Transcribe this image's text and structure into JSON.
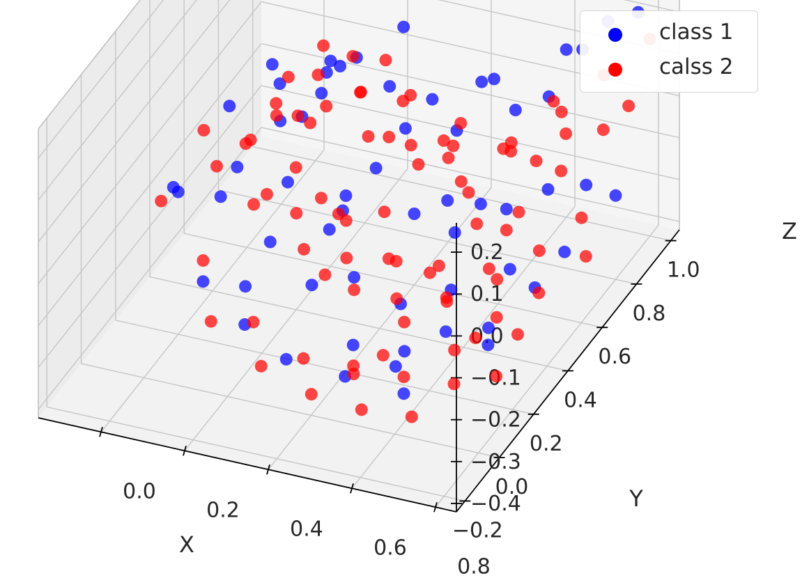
{
  "chart_data": {
    "type": "scatter",
    "projection": "3d",
    "xlabel": "X",
    "ylabel": "Y",
    "zlabel": "Z",
    "xticks": [
      "0.0",
      "0.2",
      "0.4",
      "0.6",
      "0.8"
    ],
    "yticks": [
      "−0.2",
      "0.0",
      "0.2",
      "0.4",
      "0.6",
      "0.8",
      "1.0"
    ],
    "zticks": [
      "−0.4",
      "−0.3",
      "−0.2",
      "−0.1",
      "0.0",
      "0.1",
      "0.2"
    ],
    "xlim": [
      -0.15,
      0.85
    ],
    "ylim": [
      -0.25,
      1.05
    ],
    "zlim": [
      -0.42,
      0.27
    ],
    "grid": true,
    "legend_position": "top-right",
    "series": [
      {
        "name": "class 1",
        "color": "#0000ff",
        "points": [
          [
            0.05,
            0.05,
            0.02
          ],
          [
            0.02,
            0.45,
            0.0
          ],
          [
            0.1,
            0.3,
            -0.05
          ],
          [
            0.08,
            0.6,
            -0.1
          ],
          [
            0.0,
            0.2,
            -0.08
          ],
          [
            0.12,
            0.5,
            0.05
          ],
          [
            0.18,
            0.4,
            -0.12
          ],
          [
            0.15,
            0.7,
            -0.02
          ],
          [
            0.22,
            0.2,
            -0.15
          ],
          [
            0.05,
            0.8,
            -0.2
          ],
          [
            0.25,
            0.55,
            -0.25
          ],
          [
            0.3,
            0.35,
            -0.18
          ],
          [
            0.28,
            0.75,
            -0.05
          ],
          [
            0.2,
            0.1,
            -0.3
          ],
          [
            0.35,
            0.5,
            -0.1
          ],
          [
            0.4,
            0.25,
            -0.22
          ],
          [
            0.38,
            0.65,
            -0.28
          ],
          [
            0.45,
            0.4,
            -0.35
          ],
          [
            0.42,
            0.8,
            -0.15
          ],
          [
            0.5,
            0.3,
            -0.4
          ],
          [
            0.48,
            0.6,
            -0.2
          ],
          [
            0.55,
            0.45,
            -0.32
          ],
          [
            0.52,
            0.2,
            -0.38
          ],
          [
            0.58,
            0.7,
            -0.25
          ],
          [
            0.6,
            0.35,
            -0.12
          ],
          [
            0.62,
            0.85,
            -0.05
          ],
          [
            0.65,
            0.55,
            -0.3
          ],
          [
            0.68,
            0.9,
            0.05
          ],
          [
            0.7,
            0.65,
            -0.15
          ],
          [
            0.72,
            0.95,
            0.1
          ],
          [
            0.75,
            0.75,
            -0.18
          ],
          [
            0.78,
            0.98,
            0.12
          ],
          [
            0.66,
            0.4,
            -0.36
          ],
          [
            0.56,
            0.15,
            -0.41
          ],
          [
            0.44,
            0.1,
            -0.37
          ],
          [
            0.32,
            0.05,
            -0.33
          ],
          [
            0.18,
            0.65,
            0.04
          ],
          [
            0.08,
            0.15,
            -0.25
          ],
          [
            0.26,
            0.88,
            0.02
          ],
          [
            0.46,
            0.92,
            -0.08
          ],
          [
            0.6,
            1.0,
            -0.02
          ],
          [
            0.73,
            0.5,
            -0.3
          ],
          [
            0.8,
            0.8,
            -0.22
          ],
          [
            0.14,
            0.25,
            -0.3
          ],
          [
            0.36,
            0.3,
            -0.06
          ],
          [
            0.5,
            0.75,
            0.01
          ],
          [
            0.04,
            0.35,
            -0.16
          ],
          [
            0.24,
            0.45,
            0.08
          ],
          [
            0.4,
            0.55,
            -0.02
          ],
          [
            0.64,
            0.2,
            -0.27
          ],
          [
            0.7,
            0.3,
            -0.34
          ],
          [
            0.1,
            0.9,
            -0.12
          ],
          [
            0.3,
            0.95,
            -0.18
          ],
          [
            0.54,
            0.85,
            -0.1
          ],
          [
            0.76,
            0.6,
            -0.26
          ],
          [
            0.02,
            0.7,
            -0.03
          ],
          [
            0.16,
            0.85,
            -0.06
          ],
          [
            0.34,
            0.15,
            -0.2
          ],
          [
            0.48,
            0.05,
            -0.26
          ],
          [
            0.58,
            0.55,
            -0.16
          ]
        ]
      },
      {
        "name": "calss 2",
        "color": "#ff0000",
        "points": [
          [
            0.0,
            0.1,
            -0.05
          ],
          [
            0.02,
            0.3,
            0.02
          ],
          [
            0.05,
            0.5,
            -0.1
          ],
          [
            0.03,
            0.7,
            -0.15
          ],
          [
            0.06,
            0.9,
            -0.08
          ],
          [
            0.08,
            0.15,
            -0.2
          ],
          [
            0.1,
            0.35,
            -0.02
          ],
          [
            0.12,
            0.55,
            0.04
          ],
          [
            0.09,
            0.75,
            -0.18
          ],
          [
            0.11,
            0.95,
            -0.12
          ],
          [
            0.14,
            0.05,
            -0.28
          ],
          [
            0.16,
            0.25,
            -0.1
          ],
          [
            0.18,
            0.45,
            -0.22
          ],
          [
            0.15,
            0.65,
            0.0
          ],
          [
            0.17,
            0.85,
            -0.14
          ],
          [
            0.2,
            0.15,
            -0.32
          ],
          [
            0.22,
            0.35,
            -0.05
          ],
          [
            0.24,
            0.55,
            -0.26
          ],
          [
            0.21,
            0.75,
            -0.08
          ],
          [
            0.23,
            0.95,
            -0.2
          ],
          [
            0.26,
            0.05,
            -0.36
          ],
          [
            0.28,
            0.25,
            -0.18
          ],
          [
            0.3,
            0.45,
            -0.3
          ],
          [
            0.27,
            0.65,
            -0.12
          ],
          [
            0.29,
            0.85,
            -0.24
          ],
          [
            0.32,
            0.15,
            -0.38
          ],
          [
            0.34,
            0.35,
            -0.15
          ],
          [
            0.36,
            0.55,
            -0.34
          ],
          [
            0.33,
            0.75,
            -0.06
          ],
          [
            0.35,
            0.95,
            -0.28
          ],
          [
            0.38,
            0.05,
            -0.4
          ],
          [
            0.4,
            0.25,
            -0.25
          ],
          [
            0.42,
            0.45,
            -0.37
          ],
          [
            0.39,
            0.65,
            -0.16
          ],
          [
            0.41,
            0.85,
            -0.3
          ],
          [
            0.44,
            0.15,
            -0.39
          ],
          [
            0.46,
            0.35,
            -0.22
          ],
          [
            0.48,
            0.55,
            -0.33
          ],
          [
            0.45,
            0.75,
            -0.1
          ],
          [
            0.47,
            0.95,
            -0.26
          ],
          [
            0.5,
            0.05,
            -0.41
          ],
          [
            0.52,
            0.25,
            -0.3
          ],
          [
            0.54,
            0.45,
            -0.35
          ],
          [
            0.51,
            0.65,
            -0.2
          ],
          [
            0.53,
            0.85,
            -0.18
          ],
          [
            0.56,
            0.15,
            -0.37
          ],
          [
            0.58,
            0.35,
            -0.28
          ],
          [
            0.6,
            0.55,
            -0.31
          ],
          [
            0.57,
            0.75,
            -0.14
          ],
          [
            0.59,
            0.95,
            -0.12
          ],
          [
            0.62,
            0.05,
            -0.4
          ],
          [
            0.64,
            0.25,
            -0.34
          ],
          [
            0.66,
            0.45,
            -0.27
          ],
          [
            0.63,
            0.65,
            -0.22
          ],
          [
            0.65,
            0.85,
            -0.08
          ],
          [
            0.68,
            0.15,
            -0.36
          ],
          [
            0.7,
            0.35,
            -0.3
          ],
          [
            0.72,
            0.55,
            -0.24
          ],
          [
            0.69,
            0.75,
            -0.16
          ],
          [
            0.71,
            0.95,
            -0.03
          ],
          [
            0.74,
            0.25,
            -0.38
          ],
          [
            0.76,
            0.45,
            -0.28
          ],
          [
            0.78,
            0.65,
            -0.2
          ],
          [
            0.75,
            0.85,
            -0.1
          ],
          [
            0.8,
            1.0,
            0.05
          ],
          [
            0.82,
            1.02,
            0.18
          ],
          [
            0.84,
            1.04,
            0.25
          ],
          [
            0.79,
            0.9,
            -0.06
          ],
          [
            0.77,
            0.7,
            -0.32
          ],
          [
            0.73,
            0.4,
            -0.36
          ],
          [
            0.13,
            0.4,
            -0.16
          ],
          [
            0.19,
            0.6,
            -0.04
          ],
          [
            0.25,
            0.8,
            -0.02
          ],
          [
            0.31,
            0.3,
            -0.26
          ],
          [
            0.37,
            0.5,
            -0.2
          ],
          [
            0.43,
            0.7,
            -0.12
          ],
          [
            0.49,
            0.2,
            -0.36
          ],
          [
            0.55,
            0.6,
            -0.24
          ],
          [
            0.61,
            0.8,
            -0.18
          ],
          [
            0.67,
            0.3,
            -0.33
          ],
          [
            0.07,
            0.6,
            -0.06
          ],
          [
            0.04,
            0.8,
            -0.2
          ],
          [
            0.01,
            0.4,
            -0.12
          ],
          [
            0.26,
            0.4,
            -0.14
          ],
          [
            0.34,
            0.6,
            -0.08
          ],
          [
            0.4,
            0.8,
            -0.22
          ],
          [
            0.46,
            0.1,
            -0.34
          ],
          [
            0.52,
            0.4,
            -0.26
          ],
          [
            0.58,
            0.7,
            -0.3
          ],
          [
            0.64,
            0.9,
            -0.16
          ]
        ]
      }
    ]
  }
}
